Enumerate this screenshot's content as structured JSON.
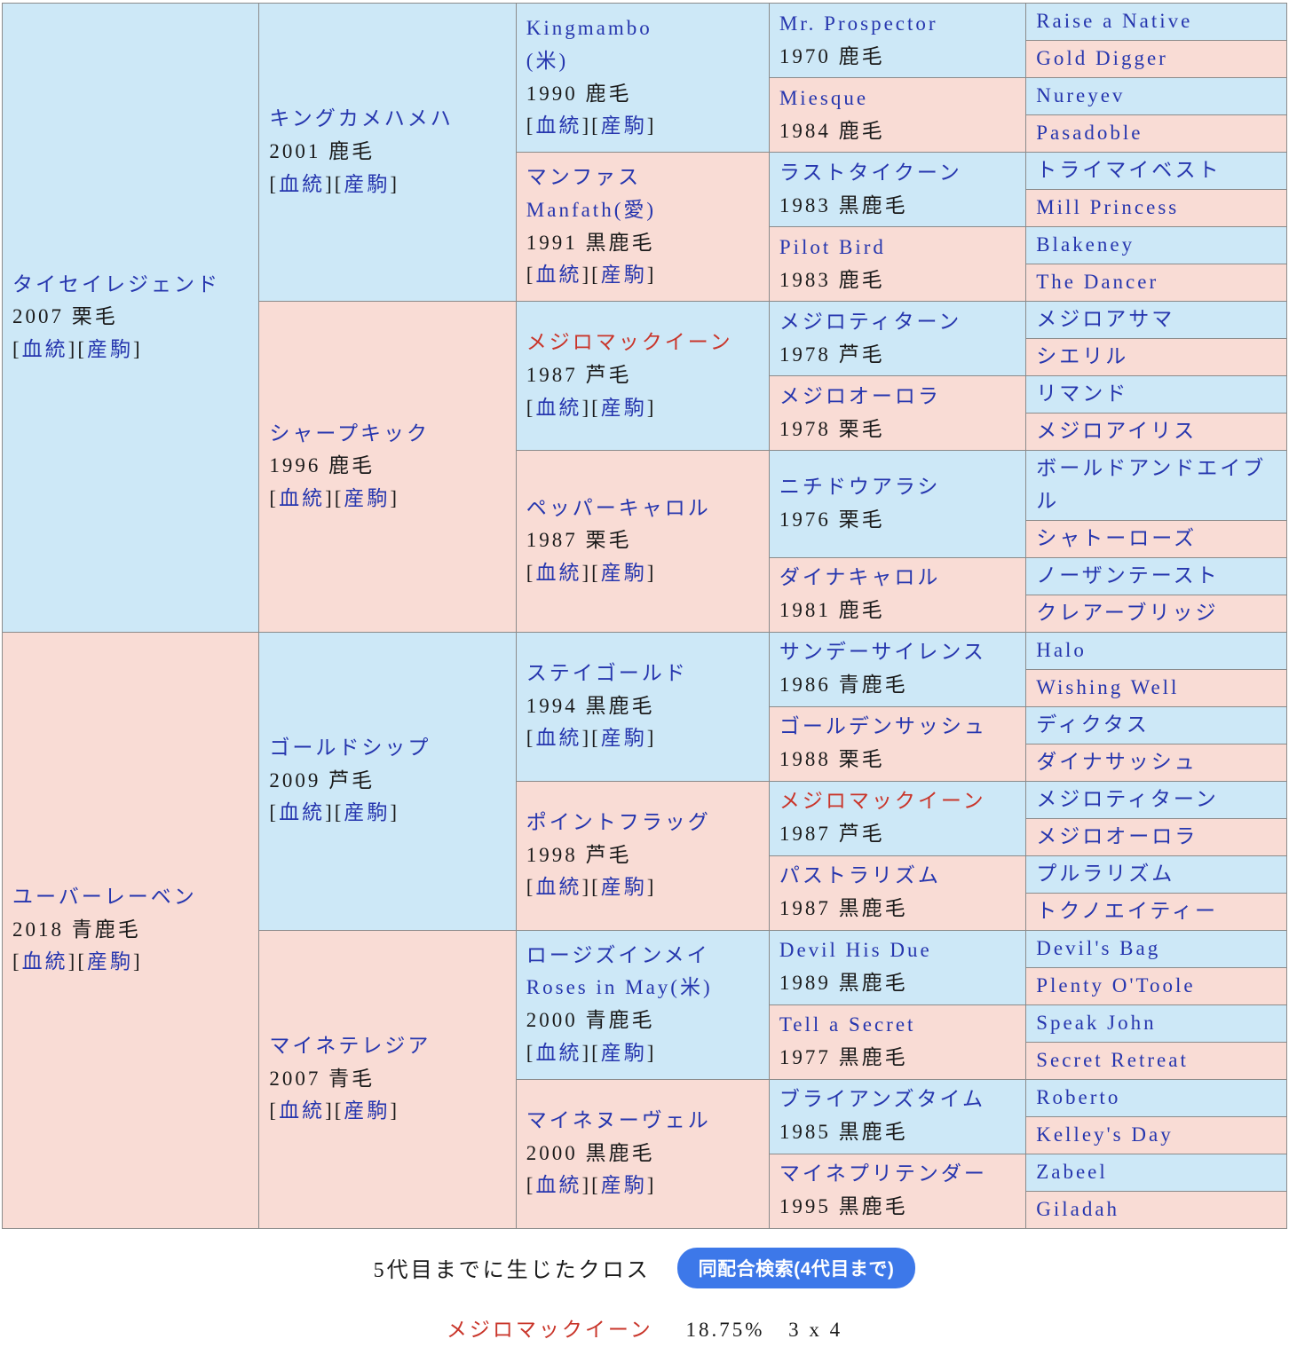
{
  "colors": {
    "male_bg": "#cde8f7",
    "female_bg": "#f9dcd5",
    "link_blue": "#2636ae",
    "highlight_red": "#c9352a",
    "border_gray": "#8b8b8b",
    "button_blue": "#3d78e9",
    "text_black": "#1a1a1a"
  },
  "pedigree": {
    "bracket_open": "[",
    "bracket_close": "]",
    "links_labels": [
      "血統",
      "産駒"
    ],
    "gen1": [
      {
        "name": "タイセイレジェンド",
        "detail": "2007 栗毛",
        "sex": "m",
        "links": true
      },
      {
        "name": "ユーバーレーベン",
        "detail": "2018 青鹿毛",
        "sex": "f",
        "links": true
      }
    ],
    "gen2": [
      {
        "name": "キングカメハメハ",
        "detail": "2001 鹿毛",
        "sex": "m",
        "links": true
      },
      {
        "name": "シャープキック",
        "detail": "1996 鹿毛",
        "sex": "f",
        "links": true
      },
      {
        "name": "ゴールドシップ",
        "detail": "2009 芦毛",
        "sex": "m",
        "links": true
      },
      {
        "name": "マイネテレジア",
        "detail": "2007 青毛",
        "sex": "f",
        "links": true
      }
    ],
    "gen3": [
      {
        "name": "Kingmambo",
        "name2": "(米)",
        "detail": "1990 鹿毛",
        "sex": "m",
        "links": true
      },
      {
        "name": "マンファス",
        "name2": "Manfath(愛)",
        "detail": "1991 黒鹿毛",
        "sex": "f",
        "links": true
      },
      {
        "name": "メジロマックイーン",
        "detail": "1987 芦毛",
        "sex": "m",
        "links": true,
        "red": true
      },
      {
        "name": "ペッパーキャロル",
        "detail": "1987 栗毛",
        "sex": "f",
        "links": true
      },
      {
        "name": "ステイゴールド",
        "detail": "1994 黒鹿毛",
        "sex": "m",
        "links": true
      },
      {
        "name": "ポイントフラッグ",
        "detail": "1998 芦毛",
        "sex": "f",
        "links": true
      },
      {
        "name": "ロージズインメイ",
        "name2": "Roses in May(米)",
        "detail": "2000 青鹿毛",
        "sex": "m",
        "links": true
      },
      {
        "name": "マイネヌーヴェル",
        "detail": "2000 黒鹿毛",
        "sex": "f",
        "links": true
      }
    ],
    "gen4": [
      {
        "name": "Mr. Prospector",
        "detail": "1970 鹿毛",
        "sex": "m"
      },
      {
        "name": "Miesque",
        "detail": "1984 鹿毛",
        "sex": "f"
      },
      {
        "name": "ラストタイクーン",
        "detail": "1983 黒鹿毛",
        "sex": "m"
      },
      {
        "name": "Pilot Bird",
        "detail": "1983 鹿毛",
        "sex": "f"
      },
      {
        "name": "メジロティターン",
        "detail": "1978 芦毛",
        "sex": "m"
      },
      {
        "name": "メジロオーロラ",
        "detail": "1978 栗毛",
        "sex": "f"
      },
      {
        "name": "ニチドウアラシ",
        "detail": "1976 栗毛",
        "sex": "m"
      },
      {
        "name": "ダイナキャロル",
        "detail": "1981 鹿毛",
        "sex": "f"
      },
      {
        "name": "サンデーサイレンス",
        "detail": "1986 青鹿毛",
        "sex": "m"
      },
      {
        "name": "ゴールデンサッシュ",
        "detail": "1988 栗毛",
        "sex": "f"
      },
      {
        "name": "メジロマックイーン",
        "detail": "1987 芦毛",
        "sex": "m",
        "red": true
      },
      {
        "name": "パストラリズム",
        "detail": "1987 黒鹿毛",
        "sex": "f"
      },
      {
        "name": "Devil His Due",
        "detail": "1989 黒鹿毛",
        "sex": "m"
      },
      {
        "name": "Tell a Secret",
        "detail": "1977 黒鹿毛",
        "sex": "f"
      },
      {
        "name": "ブライアンズタイム",
        "detail": "1985 黒鹿毛",
        "sex": "m"
      },
      {
        "name": "マイネプリテンダー",
        "detail": "1995 黒鹿毛",
        "sex": "f"
      }
    ],
    "gen5": [
      {
        "name": "Raise a Native",
        "sex": "m"
      },
      {
        "name": "Gold Digger",
        "sex": "f"
      },
      {
        "name": "Nureyev",
        "sex": "m"
      },
      {
        "name": "Pasadoble",
        "sex": "f"
      },
      {
        "name": "トライマイベスト",
        "sex": "m"
      },
      {
        "name": "Mill Princess",
        "sex": "f"
      },
      {
        "name": "Blakeney",
        "sex": "m"
      },
      {
        "name": "The Dancer",
        "sex": "f"
      },
      {
        "name": "メジロアサマ",
        "sex": "m"
      },
      {
        "name": "シエリル",
        "sex": "f"
      },
      {
        "name": "リマンド",
        "sex": "m"
      },
      {
        "name": "メジロアイリス",
        "sex": "f"
      },
      {
        "name": "ボールドアンドエイブル",
        "sex": "m"
      },
      {
        "name": "シャトーローズ",
        "sex": "f"
      },
      {
        "name": "ノーザンテースト",
        "sex": "m"
      },
      {
        "name": "クレアーブリッジ",
        "sex": "f"
      },
      {
        "name": "Halo",
        "sex": "m"
      },
      {
        "name": "Wishing Well",
        "sex": "f"
      },
      {
        "name": "ディクタス",
        "sex": "m"
      },
      {
        "name": "ダイナサッシュ",
        "sex": "f"
      },
      {
        "name": "メジロティターン",
        "sex": "m"
      },
      {
        "name": "メジロオーロラ",
        "sex": "f"
      },
      {
        "name": "プルラリズム",
        "sex": "m"
      },
      {
        "name": "トクノエイティー",
        "sex": "f"
      },
      {
        "name": "Devil's Bag",
        "sex": "m"
      },
      {
        "name": "Plenty O'Toole",
        "sex": "f"
      },
      {
        "name": "Speak John",
        "sex": "m"
      },
      {
        "name": "Secret Retreat",
        "sex": "f"
      },
      {
        "name": "Roberto",
        "sex": "m"
      },
      {
        "name": "Kelley's Day",
        "sex": "f"
      },
      {
        "name": "Zabeel",
        "sex": "m"
      },
      {
        "name": "Giladah",
        "sex": "f"
      }
    ]
  },
  "footer": {
    "cross_title": "5代目までに生じたクロス",
    "button_label": "同配合検索(4代目まで)",
    "cross_horse": "メジロマックイーン",
    "cross_percentage": "18.75%",
    "cross_generations": "3 x 4"
  }
}
